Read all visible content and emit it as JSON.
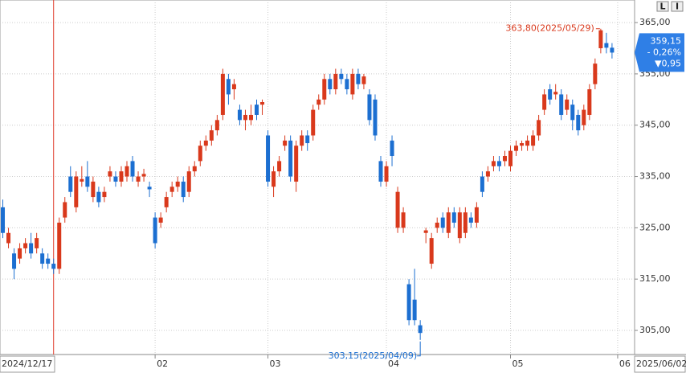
{
  "chart_data": {
    "type": "candlestick",
    "candles": [
      [
        329,
        330.5,
        323,
        324
      ],
      [
        322,
        325,
        321,
        324
      ],
      [
        320,
        321,
        315,
        317
      ],
      [
        319,
        322,
        318,
        321
      ],
      [
        321,
        323,
        320,
        322
      ],
      [
        322,
        324,
        319,
        320
      ],
      [
        321,
        324,
        320,
        323
      ],
      [
        320,
        321,
        317,
        318
      ],
      [
        319,
        320,
        317,
        318
      ],
      [
        318,
        319,
        316,
        317
      ],
      [
        317,
        327,
        316,
        326
      ],
      [
        327,
        331,
        326,
        330
      ],
      [
        335,
        337,
        331,
        332
      ],
      [
        329,
        336,
        328,
        335
      ],
      [
        334,
        337,
        333,
        334.5
      ],
      [
        335,
        338,
        332,
        333
      ],
      [
        331,
        335,
        330,
        334
      ],
      [
        332,
        333,
        329,
        330
      ],
      [
        331,
        333,
        330,
        332
      ],
      [
        335,
        337,
        334,
        336
      ],
      [
        335,
        336,
        333,
        334
      ],
      [
        334,
        337,
        333,
        336
      ],
      [
        335,
        338,
        334,
        337
      ],
      [
        338,
        339,
        334,
        335
      ],
      [
        334,
        336,
        333,
        335
      ],
      [
        335,
        336.5,
        334,
        335.5
      ],
      [
        333,
        334,
        331,
        332.5
      ],
      [
        327,
        328,
        321,
        322
      ],
      [
        326,
        328,
        325,
        327
      ],
      [
        329,
        332,
        328,
        331
      ],
      [
        332,
        334,
        331,
        333
      ],
      [
        333,
        335,
        332,
        334
      ],
      [
        334,
        335,
        330,
        331
      ],
      [
        332,
        337,
        331,
        336
      ],
      [
        336,
        338,
        335,
        337
      ],
      [
        338,
        342,
        337,
        341
      ],
      [
        341,
        343,
        340,
        342
      ],
      [
        342,
        345,
        341,
        344
      ],
      [
        344,
        347,
        343,
        346
      ],
      [
        347,
        356,
        346,
        355
      ],
      [
        354,
        355,
        349,
        351
      ],
      [
        352,
        354,
        350,
        353
      ],
      [
        348,
        349,
        345,
        346
      ],
      [
        346,
        348,
        344,
        347
      ],
      [
        346,
        349,
        345,
        347
      ],
      [
        349,
        350,
        346,
        347
      ],
      [
        349,
        350,
        347,
        349.5
      ],
      [
        343,
        344,
        333,
        334
      ],
      [
        333,
        337,
        331,
        336
      ],
      [
        336,
        339,
        335,
        338
      ],
      [
        341,
        343,
        340,
        342
      ],
      [
        342,
        343,
        334,
        335
      ],
      [
        334,
        342,
        332,
        341
      ],
      [
        341,
        344,
        340,
        343
      ],
      [
        343,
        344,
        340,
        341.5
      ],
      [
        343,
        349,
        342,
        348
      ],
      [
        349,
        351,
        348,
        350
      ],
      [
        350,
        355,
        349,
        354
      ],
      [
        354,
        355,
        351,
        352
      ],
      [
        352,
        356,
        351,
        355
      ],
      [
        355,
        356,
        353,
        354
      ],
      [
        354,
        355,
        351,
        352
      ],
      [
        351,
        356,
        350,
        355
      ],
      [
        355,
        356,
        352,
        353
      ],
      [
        353,
        355,
        352,
        354.5
      ],
      [
        351,
        352,
        345,
        346
      ],
      [
        350,
        351,
        342,
        343
      ],
      [
        338,
        339,
        333,
        334
      ],
      [
        334,
        338,
        333,
        337
      ],
      [
        342,
        343,
        337,
        339
      ],
      [
        325,
        333,
        324,
        332
      ],
      [
        325,
        329,
        324,
        328
      ],
      [
        314,
        315,
        306,
        307
      ],
      [
        311,
        317,
        306,
        307
      ],
      [
        306,
        307,
        303.15,
        304.5
      ],
      [
        324,
        325,
        322,
        324.5
      ],
      [
        318,
        324,
        317,
        323
      ],
      [
        325,
        327,
        324,
        326
      ],
      [
        327,
        328,
        324,
        325
      ],
      [
        324,
        329,
        323,
        328
      ],
      [
        328,
        329,
        325,
        326
      ],
      [
        323,
        329,
        322,
        328
      ],
      [
        324,
        329,
        323,
        328
      ],
      [
        327,
        328,
        325,
        326
      ],
      [
        326,
        330,
        325,
        329
      ],
      [
        335,
        336,
        331,
        332
      ],
      [
        335,
        337,
        334,
        336
      ],
      [
        337,
        339,
        336,
        338
      ],
      [
        338,
        339,
        336,
        337
      ],
      [
        338,
        340,
        337,
        339
      ],
      [
        337,
        341,
        336,
        340
      ],
      [
        340,
        342,
        339,
        341
      ],
      [
        341,
        342,
        340,
        341.5
      ],
      [
        341,
        343,
        340,
        342
      ],
      [
        341,
        344,
        340,
        343
      ],
      [
        343,
        347,
        342,
        346
      ],
      [
        348,
        352,
        347,
        351
      ],
      [
        352,
        353,
        349,
        350
      ],
      [
        351,
        353,
        350,
        351.5
      ],
      [
        351,
        352,
        346,
        347
      ],
      [
        348,
        351,
        347,
        350
      ],
      [
        349,
        350,
        344,
        346
      ],
      [
        347,
        348,
        343,
        344
      ],
      [
        345,
        349,
        344,
        348
      ],
      [
        347,
        353,
        346,
        352
      ],
      [
        353,
        358,
        352,
        357
      ],
      [
        360,
        363.8,
        359,
        363.5
      ],
      [
        361,
        363,
        359,
        360.1
      ],
      [
        360.1,
        361,
        358,
        359.15
      ]
    ],
    "up_color": "#d9391c",
    "down_color": "#1c6fd1",
    "ylim": [
      300.3,
      369.4
    ],
    "yticks": [
      {
        "value": 305,
        "label": "305,00"
      },
      {
        "value": 315,
        "label": "315,00"
      },
      {
        "value": 325,
        "label": "325,00"
      },
      {
        "value": 335,
        "label": "335,00"
      },
      {
        "value": 345,
        "label": "345,00"
      },
      {
        "value": 355,
        "label": "355,00"
      },
      {
        "value": 365,
        "label": "365,00"
      }
    ],
    "xlim": [
      -0.5,
      112
    ],
    "xticks": [
      {
        "value": 27,
        "label": "02"
      },
      {
        "value": 47,
        "label": "03"
      },
      {
        "value": 68,
        "label": "04"
      },
      {
        "value": 90,
        "label": "05"
      },
      {
        "value": 109,
        "label": "06"
      }
    ],
    "grid": true,
    "cursor": {
      "x": 9,
      "label": "2024/12/17"
    },
    "last_date": "2025/06/02",
    "high_annotation": {
      "x": 106,
      "value": 363.8,
      "label": "363,80(2025/05/29)"
    },
    "low_annotation": {
      "x": 74,
      "value": 303.15,
      "label": "303,15(2025/04/09)"
    },
    "price_box": {
      "price": "359,15",
      "change_pct": "- 0,26%",
      "change": "▼0,95",
      "value": 359.15
    },
    "buttons": [
      "L",
      "I"
    ]
  }
}
